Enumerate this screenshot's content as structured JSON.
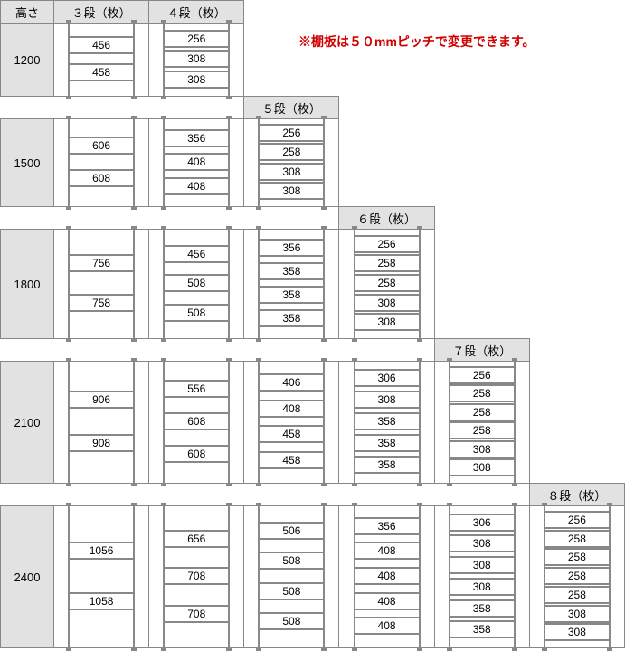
{
  "note": "※棚板は５０mmピッチで変更できます。",
  "headers": {
    "height": "高さ",
    "cols": [
      "３段（枚）",
      "４段（枚）",
      "５段（枚）",
      "６段（枚）",
      "７段（枚）",
      "８段（枚）"
    ]
  },
  "rows": [
    {
      "height": "1200",
      "cells": [
        [
          "456",
          "458"
        ],
        [
          "256",
          "308",
          "308"
        ]
      ]
    },
    {
      "height": "1500",
      "cells": [
        [
          "606",
          "608"
        ],
        [
          "356",
          "408",
          "408"
        ],
        [
          "256",
          "258",
          "308",
          "308"
        ]
      ]
    },
    {
      "height": "1800",
      "cells": [
        [
          "756",
          "758"
        ],
        [
          "456",
          "508",
          "508"
        ],
        [
          "356",
          "358",
          "358",
          "358"
        ],
        [
          "256",
          "258",
          "258",
          "308",
          "308"
        ]
      ]
    },
    {
      "height": "2100",
      "cells": [
        [
          "906",
          "908"
        ],
        [
          "556",
          "608",
          "608"
        ],
        [
          "406",
          "408",
          "458",
          "458"
        ],
        [
          "306",
          "308",
          "358",
          "358",
          "358"
        ],
        [
          "256",
          "258",
          "258",
          "258",
          "308",
          "308"
        ]
      ]
    },
    {
      "height": "2400",
      "cells": [
        [
          "1056",
          "1058"
        ],
        [
          "656",
          "708",
          "708"
        ],
        [
          "506",
          "508",
          "508",
          "508"
        ],
        [
          "356",
          "408",
          "408",
          "408",
          "408"
        ],
        [
          "306",
          "308",
          "308",
          "308",
          "358",
          "358"
        ],
        [
          "256",
          "258",
          "258",
          "258",
          "258",
          "308",
          "308"
        ]
      ]
    }
  ],
  "colors": {
    "header_bg": "#e2e2e2",
    "border": "#888888",
    "note_color": "#d00000"
  }
}
